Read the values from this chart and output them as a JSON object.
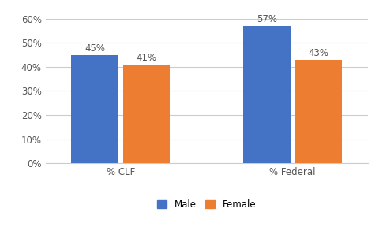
{
  "categories": [
    "% CLF",
    "% Federal"
  ],
  "male_values": [
    0.45,
    0.57
  ],
  "female_values": [
    0.41,
    0.43
  ],
  "male_color": "#4472C4",
  "female_color": "#ED7D31",
  "ylim": [
    0,
    0.63
  ],
  "yticks": [
    0.0,
    0.1,
    0.2,
    0.3,
    0.4,
    0.5,
    0.6
  ],
  "ytick_labels": [
    "0%",
    "10%",
    "20%",
    "30%",
    "40%",
    "50%",
    "60%"
  ],
  "bar_width": 0.22,
  "legend_labels": [
    "Male",
    "Female"
  ],
  "background_color": "#ffffff",
  "grid_color": "#cccccc",
  "label_fontsize": 8.5,
  "tick_fontsize": 8.5,
  "legend_fontsize": 8.5
}
